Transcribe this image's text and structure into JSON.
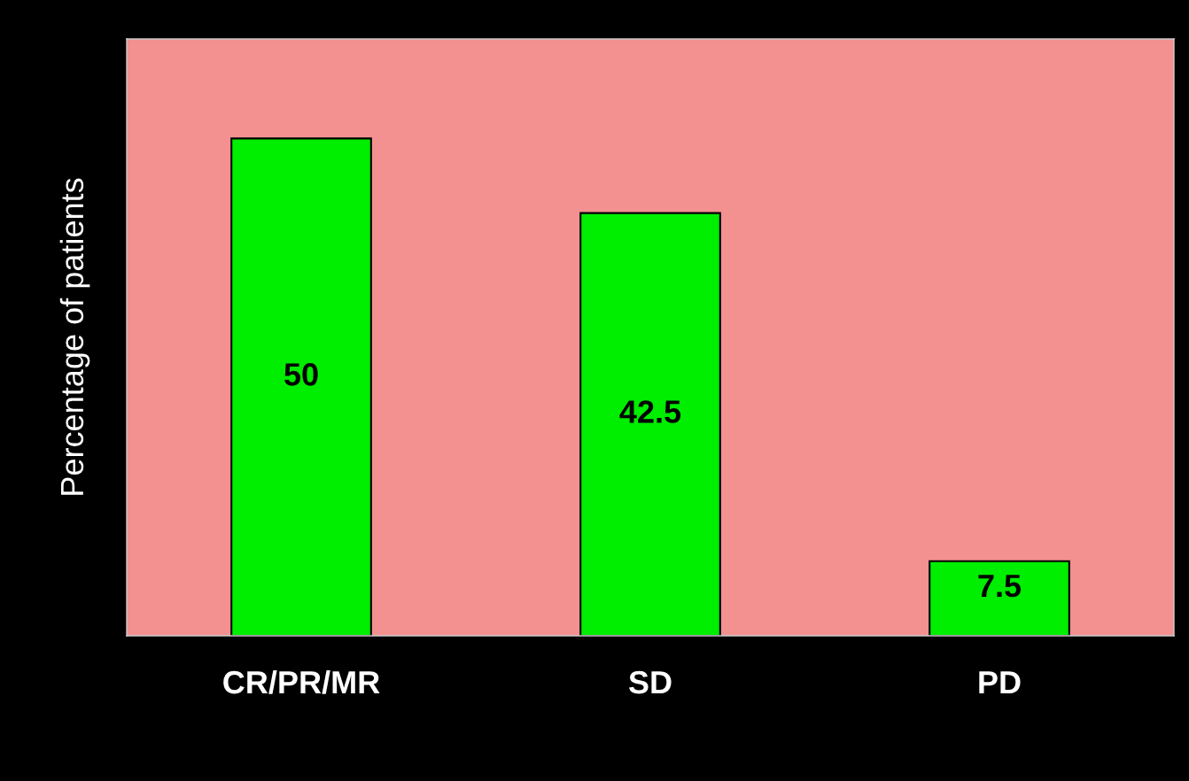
{
  "chart_data": {
    "type": "bar",
    "ylabel": "Percentage of patients",
    "categories": [
      "CR/PR/MR",
      "SD",
      "PD"
    ],
    "values": [
      50,
      42.5,
      7.5
    ],
    "color": "#00ee00",
    "ylim": [
      0,
      60
    ],
    "tick_labels": "x",
    "data_labels": true,
    "grid": false,
    "legend": false
  }
}
